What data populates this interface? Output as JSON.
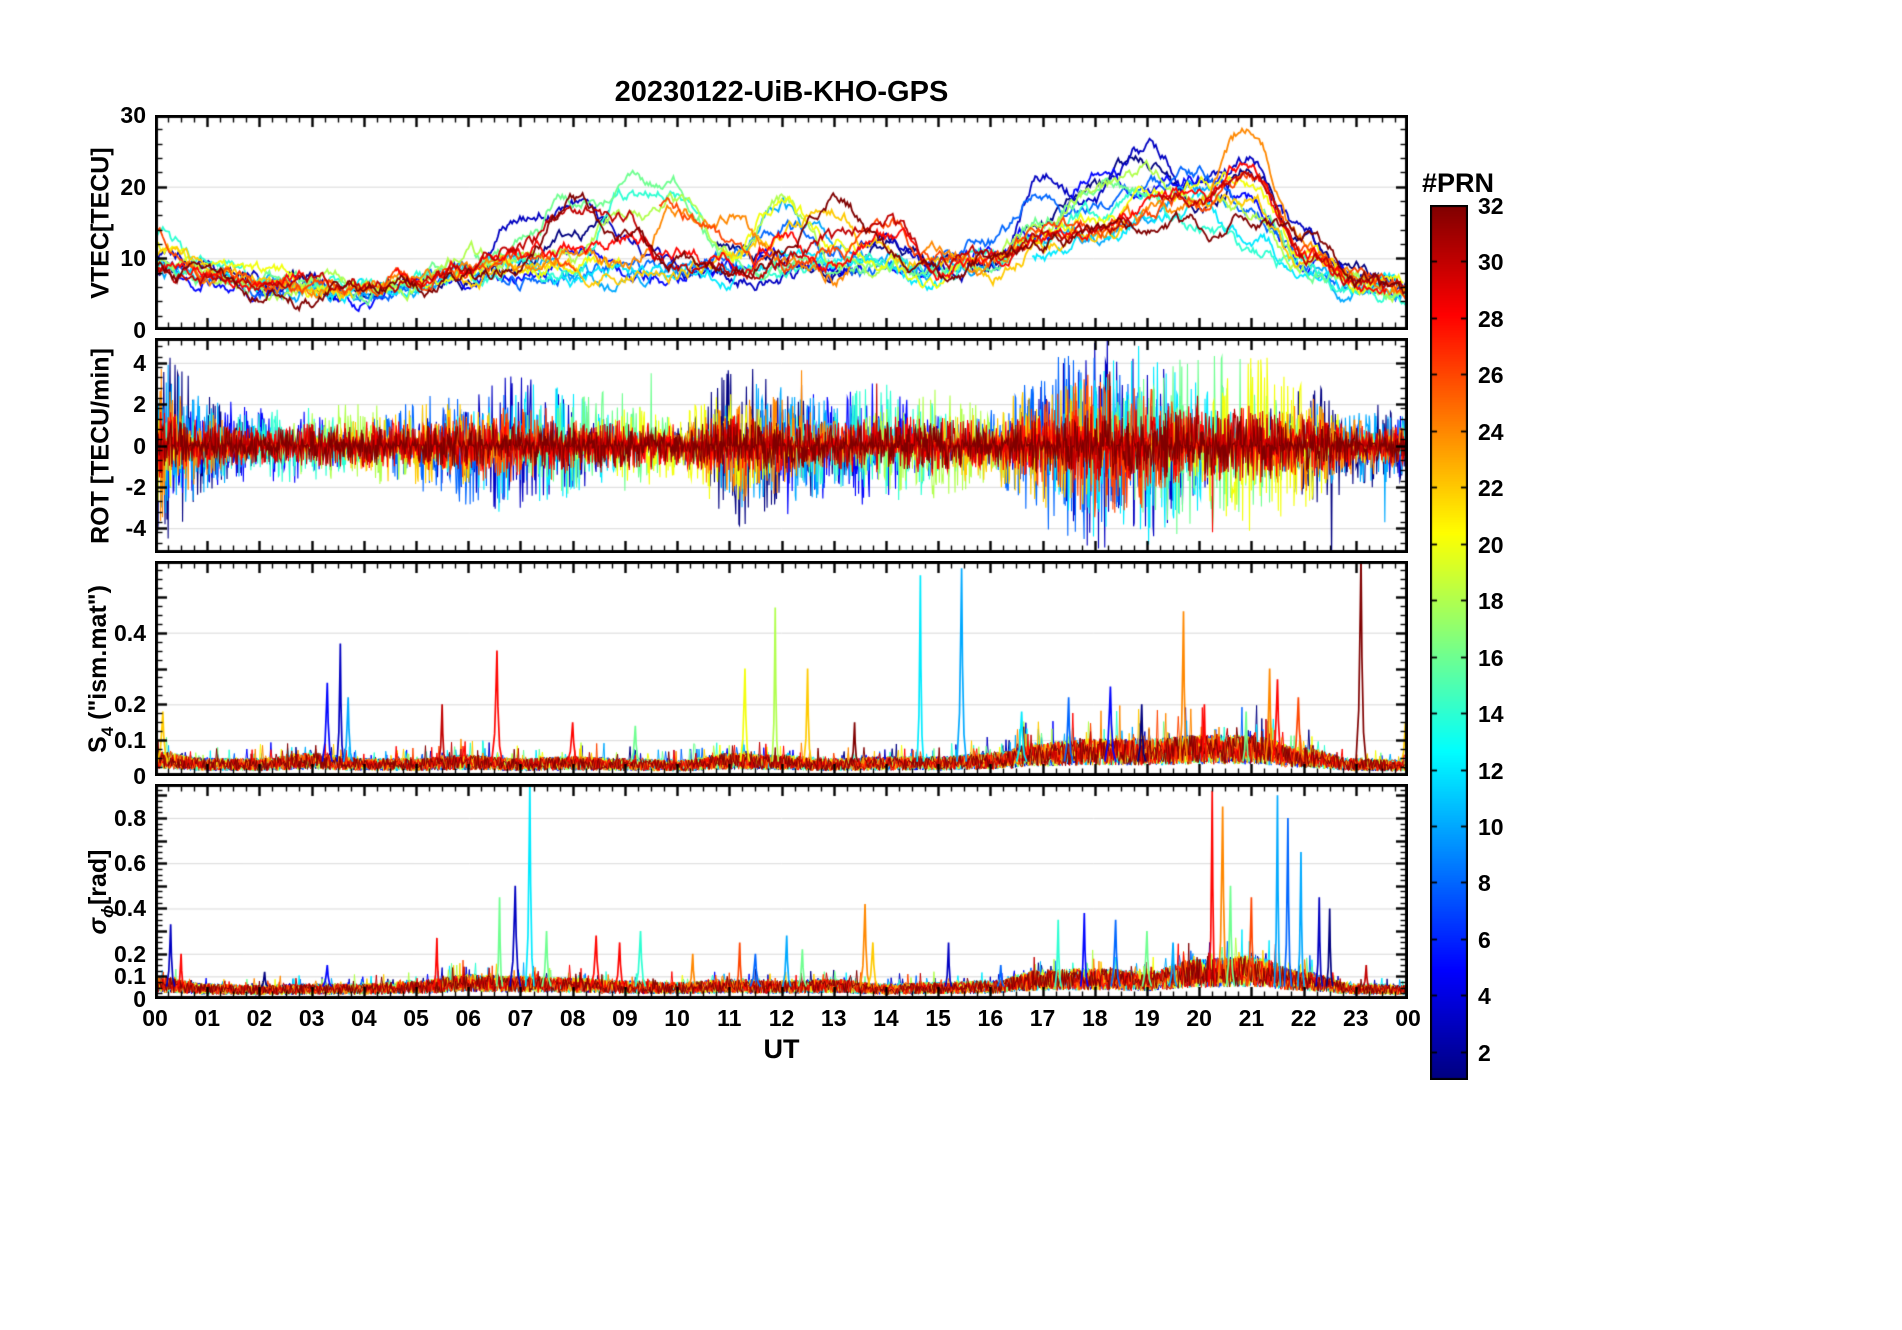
{
  "title": "20230122-UiB-KHO-GPS",
  "x": {
    "label": "UT",
    "min": 0,
    "max": 24,
    "tick_labels": [
      "00",
      "01",
      "02",
      "03",
      "04",
      "05",
      "06",
      "07",
      "08",
      "09",
      "10",
      "11",
      "12",
      "13",
      "14",
      "15",
      "16",
      "17",
      "18",
      "19",
      "20",
      "21",
      "22",
      "23",
      "00"
    ]
  },
  "colorbar": {
    "title": "#PRN",
    "colormap": "jet",
    "vmin": 1,
    "vmax": 32,
    "ticks": [
      2,
      4,
      6,
      8,
      10,
      12,
      14,
      16,
      18,
      20,
      22,
      24,
      26,
      28,
      30,
      32
    ]
  },
  "chart_data": [
    {
      "type": "line",
      "ylabel_parts": [
        {
          "t": "VTEC[TECU]"
        }
      ],
      "ylim": [
        0,
        30
      ],
      "yticks": [
        0,
        10,
        20,
        30
      ],
      "ytick_labels": [
        "0",
        "10",
        "20",
        "30"
      ],
      "x_hours": [
        0,
        1,
        2,
        3,
        4,
        5,
        6,
        7,
        8,
        9,
        10,
        11,
        12,
        13,
        14,
        15,
        16,
        17,
        18,
        19,
        20,
        21,
        22,
        23,
        24
      ],
      "series": [
        {
          "prn": 1,
          "values": [
            9,
            8,
            7,
            6,
            6,
            7,
            7,
            8,
            13,
            16,
            14,
            12,
            9,
            8,
            12,
            10,
            9,
            15,
            20,
            24,
            18,
            22,
            12,
            7,
            6
          ]
        },
        {
          "prn": 3,
          "values": [
            10,
            8,
            7,
            6,
            6,
            6,
            8,
            16,
            17,
            12,
            9,
            8,
            8,
            9,
            13,
            9,
            8,
            21,
            18,
            25,
            20,
            24,
            14,
            8,
            6
          ]
        },
        {
          "prn": 5,
          "values": [
            8,
            7,
            6,
            6,
            5,
            6,
            7,
            9,
            10,
            8,
            8,
            9,
            10,
            8,
            9,
            8,
            10,
            14,
            22,
            20,
            23,
            18,
            10,
            7,
            5
          ]
        },
        {
          "prn": 8,
          "values": [
            9,
            7,
            6,
            6,
            6,
            7,
            8,
            8,
            9,
            9,
            8,
            9,
            15,
            10,
            8,
            9,
            12,
            18,
            16,
            20,
            22,
            16,
            9,
            6,
            5
          ]
        },
        {
          "prn": 10,
          "values": [
            8,
            7,
            6,
            5,
            6,
            6,
            9,
            10,
            8,
            7,
            8,
            9,
            17,
            12,
            9,
            8,
            10,
            12,
            14,
            18,
            20,
            15,
            8,
            6,
            5
          ]
        },
        {
          "prn": 12,
          "values": [
            9,
            8,
            6,
            6,
            5,
            6,
            7,
            8,
            8,
            9,
            9,
            8,
            10,
            9,
            8,
            7,
            9,
            11,
            13,
            16,
            18,
            12,
            8,
            6,
            5
          ]
        },
        {
          "prn": 14,
          "values": [
            13,
            9,
            7,
            6,
            6,
            6,
            7,
            8,
            9,
            19,
            19,
            10,
            9,
            8,
            9,
            8,
            9,
            13,
            16,
            18,
            15,
            10,
            8,
            6,
            5
          ]
        },
        {
          "prn": 16,
          "values": [
            8,
            7,
            6,
            6,
            6,
            7,
            9,
            12,
            18,
            20,
            19,
            12,
            9,
            8,
            9,
            8,
            10,
            15,
            21,
            19,
            16,
            20,
            9,
            7,
            6
          ]
        },
        {
          "prn": 18,
          "values": [
            9,
            7,
            6,
            6,
            6,
            7,
            10,
            9,
            10,
            16,
            18,
            10,
            18,
            9,
            8,
            8,
            11,
            14,
            20,
            22,
            18,
            15,
            9,
            7,
            6
          ]
        },
        {
          "prn": 20,
          "values": [
            12,
            8,
            7,
            6,
            6,
            7,
            8,
            9,
            10,
            9,
            8,
            9,
            18,
            12,
            9,
            8,
            10,
            13,
            15,
            18,
            20,
            21,
            10,
            7,
            6
          ]
        },
        {
          "prn": 22,
          "values": [
            10,
            8,
            7,
            6,
            6,
            6,
            8,
            9,
            9,
            8,
            9,
            10,
            14,
            16,
            10,
            9,
            9,
            12,
            14,
            16,
            18,
            19,
            9,
            7,
            6
          ]
        },
        {
          "prn": 24,
          "values": [
            13,
            9,
            7,
            6,
            6,
            7,
            8,
            9,
            10,
            9,
            17,
            16,
            10,
            9,
            15,
            10,
            9,
            11,
            13,
            15,
            17,
            27,
            12,
            7,
            6
          ]
        },
        {
          "prn": 26,
          "values": [
            14,
            9,
            7,
            6,
            6,
            7,
            8,
            9,
            10,
            16,
            17,
            12,
            9,
            10,
            16,
            9,
            10,
            12,
            14,
            16,
            18,
            22,
            10,
            7,
            6
          ]
        },
        {
          "prn": 28,
          "values": [
            9,
            8,
            7,
            6,
            6,
            7,
            9,
            10,
            12,
            14,
            10,
            9,
            13,
            10,
            12,
            9,
            10,
            13,
            15,
            17,
            19,
            23,
            11,
            7,
            6
          ]
        },
        {
          "prn": 30,
          "values": [
            8,
            7,
            6,
            6,
            6,
            7,
            8,
            12,
            16,
            15,
            9,
            8,
            10,
            12,
            15,
            10,
            9,
            12,
            14,
            16,
            18,
            20,
            10,
            7,
            5
          ]
        },
        {
          "prn": 32,
          "values": [
            9,
            8,
            6,
            5,
            6,
            6,
            8,
            10,
            18,
            14,
            9,
            8,
            10,
            18,
            12,
            9,
            10,
            12,
            15,
            13,
            14,
            16,
            12,
            8,
            5
          ]
        }
      ]
    },
    {
      "type": "line",
      "ylabel_parts": [
        {
          "t": "ROT [TECU/min]"
        }
      ],
      "ylim": [
        -5.2,
        5.2
      ],
      "yticks": [
        -4,
        -2,
        0,
        2,
        4
      ],
      "ytick_labels": [
        "-4",
        "-2",
        "0",
        "2",
        "4"
      ],
      "envelope_hours": [
        0,
        1,
        2,
        3,
        4,
        5,
        6,
        7,
        8,
        9,
        10,
        11,
        12,
        13,
        14,
        15,
        16,
        17,
        18,
        19,
        20,
        21,
        22,
        23,
        24
      ],
      "envelope": [
        4.5,
        2.2,
        1.6,
        2.0,
        2.2,
        2.2,
        2.6,
        2.8,
        2.8,
        2.6,
        1.8,
        3.6,
        2.8,
        2.4,
        3.0,
        3.0,
        2.2,
        3.6,
        4.6,
        4.6,
        4.6,
        4.8,
        3.4,
        1.8,
        1.6
      ],
      "series": [
        {
          "prn": 1,
          "scale": 1.0
        },
        {
          "prn": 3,
          "scale": 1.0
        },
        {
          "prn": 5,
          "scale": 0.95
        },
        {
          "prn": 8,
          "scale": 0.95
        },
        {
          "prn": 10,
          "scale": 0.9
        },
        {
          "prn": 12,
          "scale": 0.9
        },
        {
          "prn": 14,
          "scale": 0.85
        },
        {
          "prn": 16,
          "scale": 0.85
        },
        {
          "prn": 18,
          "scale": 0.8
        },
        {
          "prn": 20,
          "scale": 0.8
        },
        {
          "prn": 22,
          "scale": 0.75
        },
        {
          "prn": 24,
          "scale": 0.7
        },
        {
          "prn": 26,
          "scale": 0.65
        },
        {
          "prn": 28,
          "scale": 0.55
        },
        {
          "prn": 30,
          "scale": 0.5
        },
        {
          "prn": 32,
          "scale": 0.45
        }
      ]
    },
    {
      "type": "line",
      "ylabel_parts": [
        {
          "t": "S"
        },
        {
          "t": "4",
          "sub": true
        },
        {
          "t": " (\"ism.mat\")"
        }
      ],
      "ylim": [
        0,
        0.6
      ],
      "yticks": [
        0,
        0.1,
        0.2,
        0.4
      ],
      "ytick_labels": [
        "0",
        "0.1",
        "0.2",
        "0.4"
      ],
      "baseline": 0.04,
      "activity_hours": [
        0,
        1,
        2,
        3,
        4,
        5,
        6,
        7,
        8,
        9,
        10,
        11,
        12,
        13,
        14,
        15,
        16,
        17,
        18,
        19,
        20,
        21,
        22,
        23,
        24
      ],
      "activity": [
        1.4,
        1,
        1,
        1.3,
        1,
        1,
        1.2,
        1,
        1.1,
        1,
        0.9,
        1.3,
        1.2,
        1,
        1.1,
        1.1,
        1.3,
        1.9,
        2.1,
        2.1,
        2.3,
        2.3,
        1.6,
        1,
        0.9
      ],
      "spikes_t_prn_value": [
        [
          0.15,
          22,
          0.18
        ],
        [
          3.3,
          5,
          0.26
        ],
        [
          3.55,
          3,
          0.37
        ],
        [
          3.7,
          10,
          0.22
        ],
        [
          5.5,
          30,
          0.2
        ],
        [
          6.55,
          28,
          0.35
        ],
        [
          8.0,
          28,
          0.15
        ],
        [
          9.2,
          16,
          0.14
        ],
        [
          11.3,
          20,
          0.3
        ],
        [
          11.88,
          18,
          0.47
        ],
        [
          12.5,
          22,
          0.3
        ],
        [
          13.4,
          32,
          0.15
        ],
        [
          14.66,
          12,
          0.56
        ],
        [
          15.45,
          10,
          0.58
        ],
        [
          16.6,
          12,
          0.18
        ],
        [
          17.5,
          8,
          0.22
        ],
        [
          18.3,
          5,
          0.25
        ],
        [
          18.9,
          1,
          0.2
        ],
        [
          19.7,
          24,
          0.46
        ],
        [
          20.1,
          28,
          0.2
        ],
        [
          20.9,
          16,
          0.18
        ],
        [
          21.35,
          24,
          0.3
        ],
        [
          21.5,
          28,
          0.27
        ],
        [
          21.9,
          26,
          0.22
        ],
        [
          23.1,
          32,
          0.62
        ],
        [
          23.95,
          22,
          0.15
        ]
      ]
    },
    {
      "type": "line",
      "ylabel_parts": [
        {
          "t": "σ",
          "italic": true
        },
        {
          "t": "ϕ",
          "sub": true,
          "italic": true
        },
        {
          "t": "[rad]"
        }
      ],
      "ylim": [
        0,
        0.95
      ],
      "yticks": [
        0,
        0.1,
        0.2,
        0.4,
        0.6,
        0.8
      ],
      "ytick_labels": [
        "0",
        "0.1",
        "0.2",
        "0.4",
        "0.6",
        "0.8"
      ],
      "baseline": 0.055,
      "activity_hours": [
        0,
        1,
        2,
        3,
        4,
        5,
        6,
        7,
        8,
        9,
        10,
        11,
        12,
        13,
        14,
        15,
        16,
        17,
        18,
        19,
        20,
        21,
        22,
        23,
        24
      ],
      "activity": [
        1.5,
        1,
        0.9,
        1,
        1,
        1.2,
        1.6,
        1.5,
        1.4,
        1.2,
        1.1,
        1.3,
        1.2,
        1.3,
        1,
        1.1,
        1.2,
        1.9,
        2,
        1.8,
        2.6,
        2.8,
        1.8,
        1,
        0.9
      ],
      "spikes_t_prn_value": [
        [
          0.3,
          3,
          0.33
        ],
        [
          0.5,
          28,
          0.2
        ],
        [
          2.1,
          1,
          0.12
        ],
        [
          3.3,
          5,
          0.15
        ],
        [
          5.4,
          28,
          0.27
        ],
        [
          6.6,
          16,
          0.45
        ],
        [
          6.9,
          3,
          0.5
        ],
        [
          7.18,
          12,
          0.96
        ],
        [
          7.5,
          16,
          0.3
        ],
        [
          8.45,
          28,
          0.28
        ],
        [
          8.9,
          28,
          0.25
        ],
        [
          9.3,
          14,
          0.3
        ],
        [
          10.3,
          24,
          0.2
        ],
        [
          11.2,
          26,
          0.25
        ],
        [
          11.5,
          8,
          0.2
        ],
        [
          12.1,
          10,
          0.28
        ],
        [
          12.4,
          16,
          0.22
        ],
        [
          13.6,
          24,
          0.42
        ],
        [
          13.75,
          22,
          0.25
        ],
        [
          15.2,
          3,
          0.25
        ],
        [
          16.2,
          8,
          0.15
        ],
        [
          17.3,
          14,
          0.35
        ],
        [
          17.8,
          5,
          0.38
        ],
        [
          18.4,
          8,
          0.35
        ],
        [
          19.0,
          16,
          0.3
        ],
        [
          19.5,
          10,
          0.25
        ],
        [
          20.25,
          28,
          0.92
        ],
        [
          20.45,
          24,
          0.85
        ],
        [
          20.6,
          16,
          0.5
        ],
        [
          21.0,
          26,
          0.45
        ],
        [
          21.5,
          10,
          0.9
        ],
        [
          21.7,
          8,
          0.8
        ],
        [
          21.95,
          10,
          0.65
        ],
        [
          22.3,
          3,
          0.45
        ],
        [
          22.5,
          1,
          0.4
        ],
        [
          23.2,
          30,
          0.15
        ]
      ]
    }
  ]
}
